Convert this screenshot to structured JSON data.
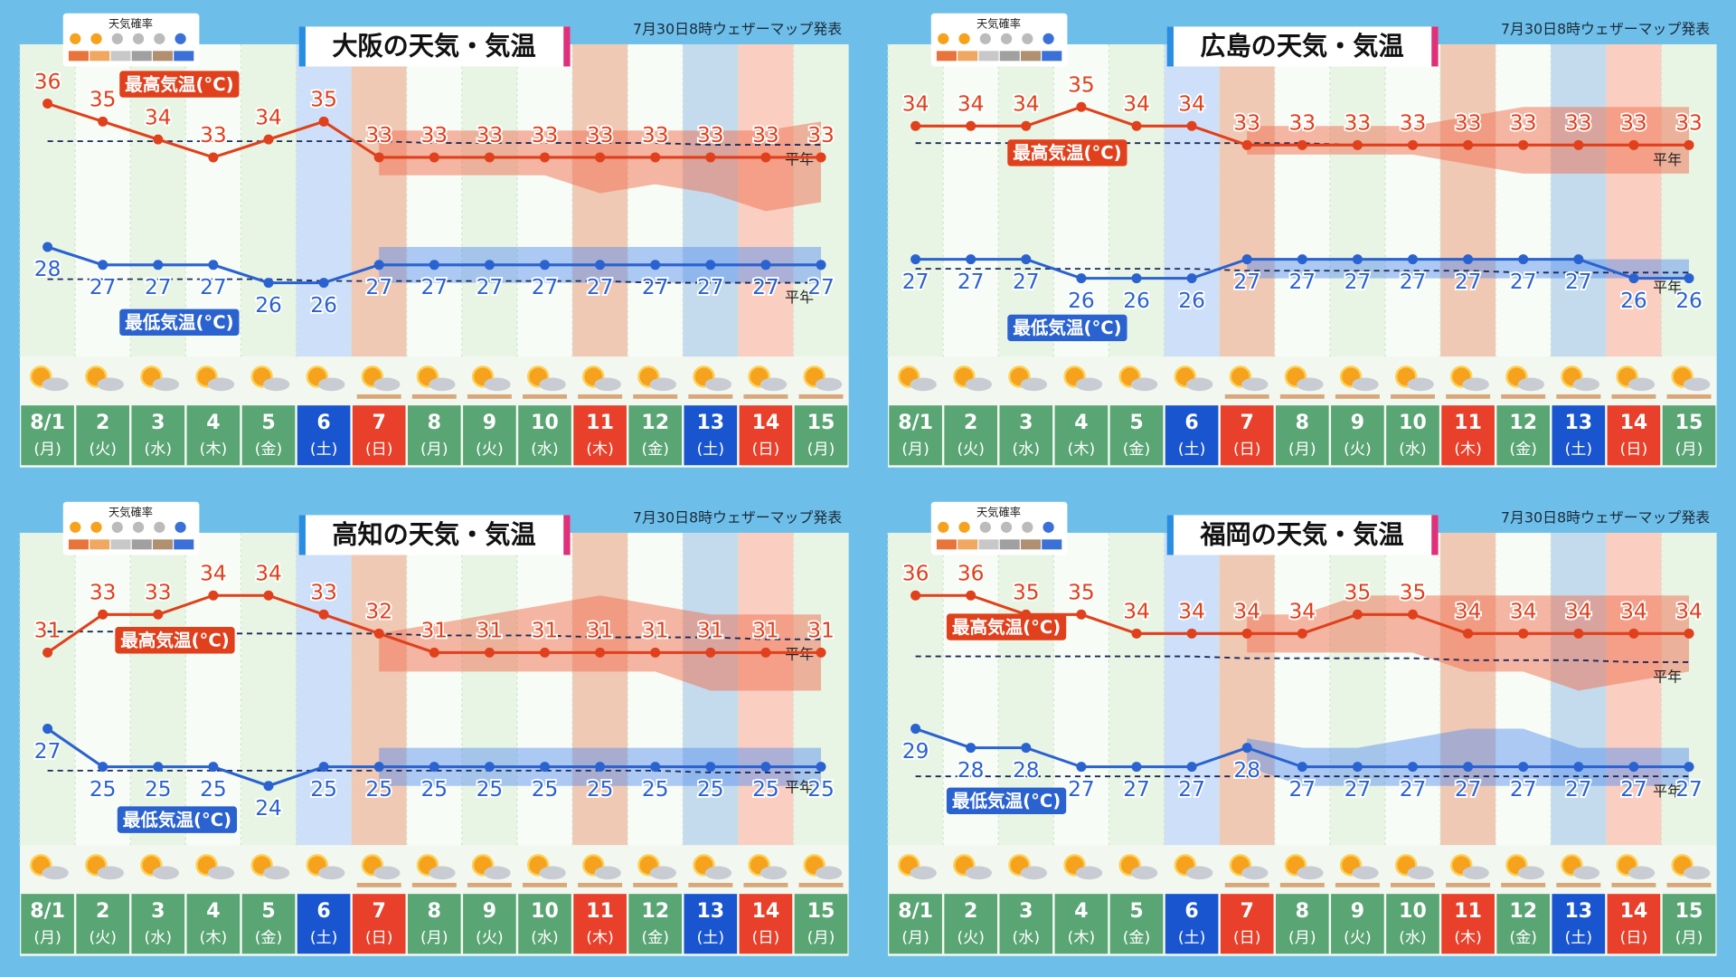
{
  "chart_data": [
    {
      "type": "line",
      "title": "大阪の天気・気温",
      "note": "7月30日8時ウェザーマップ発表",
      "legend_title": "天気確率",
      "normal_label": "平年",
      "categories": [
        "8/1",
        "2",
        "3",
        "4",
        "5",
        "6",
        "7",
        "8",
        "9",
        "10",
        "11",
        "12",
        "13",
        "14",
        "15"
      ],
      "weekdays": [
        "(月)",
        "(火)",
        "(水)",
        "(木)",
        "(金)",
        "(土)",
        "(日)",
        "(月)",
        "(火)",
        "(水)",
        "(木)",
        "(金)",
        "(土)",
        "(日)",
        "(月)"
      ],
      "ylim": [
        22,
        39
      ],
      "series": [
        {
          "name": "最高気温(°C)",
          "color": "#e0401c",
          "values": [
            36,
            35,
            34,
            33,
            34,
            35,
            33,
            33,
            33,
            33,
            33,
            33,
            33,
            33,
            33
          ],
          "normal": [
            33.9,
            33.9,
            33.9,
            33.9,
            33.9,
            33.9,
            33.9,
            33.8,
            33.8,
            33.8,
            33.8,
            33.8,
            33.7,
            33.7,
            33.7
          ],
          "band_upper": [
            null,
            null,
            null,
            null,
            null,
            null,
            34.5,
            34.5,
            34.5,
            34.5,
            34.5,
            34.5,
            34.5,
            34.5,
            35
          ],
          "band_lower": [
            null,
            null,
            null,
            null,
            null,
            null,
            32,
            32,
            32,
            32,
            31,
            31.5,
            31,
            30,
            30.5
          ]
        },
        {
          "name": "最低気温(°C)",
          "color": "#2a62d0",
          "values": [
            28,
            27,
            27,
            27,
            26,
            26,
            27,
            27,
            27,
            27,
            27,
            27,
            27,
            27,
            27
          ],
          "normal": [
            26.2,
            26.2,
            26.2,
            26.2,
            26.2,
            26.1,
            26.1,
            26.1,
            26.1,
            26.1,
            26.1,
            26,
            26,
            26,
            26
          ],
          "band_upper": [
            null,
            null,
            null,
            null,
            null,
            null,
            28,
            28,
            28,
            28,
            28,
            28,
            28,
            28,
            28
          ],
          "band_lower": [
            null,
            null,
            null,
            null,
            null,
            null,
            26,
            26,
            26,
            26,
            26,
            26,
            26,
            26,
            26
          ]
        }
      ]
    },
    {
      "type": "line",
      "title": "広島の天気・気温",
      "note": "7月30日8時ウェザーマップ発表",
      "legend_title": "天気確率",
      "normal_label": "平年",
      "categories": [
        "8/1",
        "2",
        "3",
        "4",
        "5",
        "6",
        "7",
        "8",
        "9",
        "10",
        "11",
        "12",
        "13",
        "14",
        "15"
      ],
      "weekdays": [
        "(月)",
        "(火)",
        "(水)",
        "(木)",
        "(金)",
        "(土)",
        "(日)",
        "(月)",
        "(火)",
        "(水)",
        "(木)",
        "(金)",
        "(土)",
        "(日)",
        "(月)"
      ],
      "ylim": [
        22,
        38
      ],
      "series": [
        {
          "name": "最高気温(°C)",
          "color": "#e0401c",
          "values": [
            34,
            34,
            34,
            35,
            34,
            34,
            33,
            33,
            33,
            33,
            33,
            33,
            33,
            33,
            33
          ],
          "normal": [
            33.1,
            33.1,
            33.1,
            33.1,
            33.1,
            33.1,
            33.1,
            33.1,
            33,
            33,
            33,
            33,
            33,
            33,
            33
          ],
          "band_upper": [
            null,
            null,
            null,
            null,
            null,
            null,
            34,
            34,
            34,
            34,
            34.5,
            35,
            35,
            35,
            35
          ],
          "band_lower": [
            null,
            null,
            null,
            null,
            null,
            null,
            32.5,
            32.5,
            32.5,
            32.5,
            32,
            31.5,
            31.5,
            31.5,
            31.5
          ]
        },
        {
          "name": "最低気温(°C)",
          "color": "#2a62d0",
          "values": [
            27,
            27,
            27,
            26,
            26,
            26,
            27,
            27,
            27,
            27,
            27,
            27,
            27,
            26,
            26
          ],
          "normal": [
            26.5,
            26.5,
            26.5,
            26.5,
            26.5,
            26.5,
            26.4,
            26.4,
            26.4,
            26.4,
            26.4,
            26.3,
            26.3,
            26.3,
            26.3
          ],
          "band_upper": [
            null,
            null,
            null,
            null,
            null,
            null,
            27,
            27,
            27,
            27,
            27,
            27,
            27,
            27,
            27
          ],
          "band_lower": [
            null,
            null,
            null,
            null,
            null,
            null,
            26,
            26,
            26,
            26,
            26,
            26,
            26,
            26,
            26
          ]
        }
      ]
    },
    {
      "type": "line",
      "title": "高知の天気・気温",
      "note": "7月30日8時ウェザーマップ発表",
      "legend_title": "天気確率",
      "normal_label": "平年",
      "categories": [
        "8/1",
        "2",
        "3",
        "4",
        "5",
        "6",
        "7",
        "8",
        "9",
        "10",
        "11",
        "12",
        "13",
        "14",
        "15"
      ],
      "weekdays": [
        "(月)",
        "(火)",
        "(水)",
        "(木)",
        "(金)",
        "(土)",
        "(日)",
        "(月)",
        "(火)",
        "(水)",
        "(木)",
        "(金)",
        "(土)",
        "(日)",
        "(月)"
      ],
      "ylim": [
        21,
        37
      ],
      "series": [
        {
          "name": "最高気温(°C)",
          "color": "#e0401c",
          "values": [
            31,
            33,
            33,
            34,
            34,
            33,
            32,
            31,
            31,
            31,
            31,
            31,
            31,
            31,
            31
          ],
          "normal": [
            32.1,
            32.1,
            32.1,
            32,
            32,
            32,
            32,
            31.9,
            31.9,
            31.9,
            31.8,
            31.8,
            31.8,
            31.7,
            31.7
          ],
          "band_upper": [
            null,
            null,
            null,
            null,
            null,
            null,
            32,
            32.5,
            33,
            33.5,
            34,
            33.5,
            33,
            33,
            33
          ],
          "band_lower": [
            null,
            null,
            null,
            null,
            null,
            null,
            30,
            30,
            30,
            30,
            30,
            30,
            29,
            29,
            29
          ]
        },
        {
          "name": "最低気温(°C)",
          "color": "#2a62d0",
          "values": [
            27,
            25,
            25,
            25,
            24,
            25,
            25,
            25,
            25,
            25,
            25,
            25,
            25,
            25,
            25
          ],
          "normal": [
            24.8,
            24.8,
            24.8,
            24.8,
            24.8,
            24.8,
            24.8,
            24.8,
            24.8,
            24.8,
            24.8,
            24.8,
            24.7,
            24.7,
            24.7
          ],
          "band_upper": [
            null,
            null,
            null,
            null,
            null,
            null,
            26,
            26,
            26,
            26,
            26,
            26,
            26,
            26,
            26
          ],
          "band_lower": [
            null,
            null,
            null,
            null,
            null,
            null,
            24,
            24,
            24,
            24,
            24,
            24,
            24,
            24,
            24
          ]
        }
      ]
    },
    {
      "type": "line",
      "title": "福岡の天気・気温",
      "note": "7月30日8時ウェザーマップ発表",
      "legend_title": "天気確率",
      "normal_label": "平年",
      "categories": [
        "8/1",
        "2",
        "3",
        "4",
        "5",
        "6",
        "7",
        "8",
        "9",
        "10",
        "11",
        "12",
        "13",
        "14",
        "15"
      ],
      "weekdays": [
        "(月)",
        "(火)",
        "(水)",
        "(木)",
        "(金)",
        "(土)",
        "(日)",
        "(月)",
        "(火)",
        "(水)",
        "(木)",
        "(金)",
        "(土)",
        "(日)",
        "(月)"
      ],
      "ylim": [
        23,
        39
      ],
      "series": [
        {
          "name": "最高気温(°C)",
          "color": "#e0401c",
          "values": [
            36,
            36,
            35,
            35,
            34,
            34,
            34,
            34,
            35,
            35,
            34,
            34,
            34,
            34,
            34
          ],
          "normal": [
            32.8,
            32.8,
            32.8,
            32.8,
            32.8,
            32.8,
            32.7,
            32.7,
            32.7,
            32.7,
            32.6,
            32.6,
            32.6,
            32.5,
            32.5
          ],
          "band_upper": [
            null,
            null,
            null,
            null,
            null,
            null,
            35,
            35,
            36,
            36,
            36,
            36,
            36,
            36,
            36
          ],
          "band_lower": [
            null,
            null,
            null,
            null,
            null,
            null,
            33,
            33,
            33,
            33,
            32,
            32,
            31,
            31.5,
            32
          ]
        },
        {
          "name": "最低気温(°C)",
          "color": "#2a62d0",
          "values": [
            29,
            28,
            28,
            27,
            27,
            27,
            28,
            27,
            27,
            27,
            27,
            27,
            27,
            27,
            27
          ],
          "normal": [
            26.5,
            26.5,
            26.5,
            26.5,
            26.5,
            26.5,
            26.5,
            26.5,
            26.5,
            26.5,
            26.5,
            26.5,
            26.5,
            26.5,
            26.5
          ],
          "band_upper": [
            null,
            null,
            null,
            null,
            null,
            null,
            28.5,
            28,
            28,
            28.5,
            29,
            29,
            28,
            28,
            28
          ],
          "band_lower": [
            null,
            null,
            null,
            null,
            null,
            null,
            27,
            26,
            26,
            26,
            26,
            26,
            26,
            26,
            26
          ]
        }
      ]
    }
  ]
}
